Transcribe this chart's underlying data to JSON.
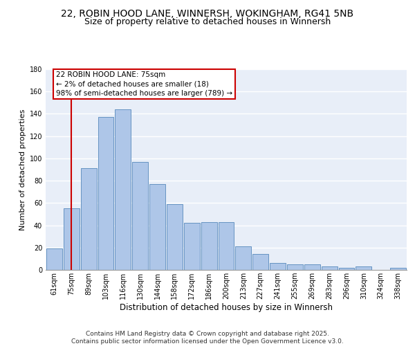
{
  "title1": "22, ROBIN HOOD LANE, WINNERSH, WOKINGHAM, RG41 5NB",
  "title2": "Size of property relative to detached houses in Winnersh",
  "xlabel": "Distribution of detached houses by size in Winnersh",
  "ylabel": "Number of detached properties",
  "bin_labels": [
    "61sqm",
    "75sqm",
    "89sqm",
    "103sqm",
    "116sqm",
    "130sqm",
    "144sqm",
    "158sqm",
    "172sqm",
    "186sqm",
    "200sqm",
    "213sqm",
    "227sqm",
    "241sqm",
    "255sqm",
    "269sqm",
    "283sqm",
    "296sqm",
    "310sqm",
    "324sqm",
    "338sqm"
  ],
  "bar_values": [
    19,
    55,
    91,
    137,
    144,
    97,
    77,
    59,
    42,
    43,
    43,
    21,
    14,
    6,
    5,
    5,
    3,
    2,
    3,
    0,
    2
  ],
  "bar_color": "#aec6e8",
  "bar_edgecolor": "#5588bb",
  "vline_x": 1,
  "vline_color": "#cc0000",
  "annotation_text": "22 ROBIN HOOD LANE: 75sqm\n← 2% of detached houses are smaller (18)\n98% of semi-detached houses are larger (789) →",
  "annotation_box_edgecolor": "#cc0000",
  "ylim": [
    0,
    180
  ],
  "yticks": [
    0,
    20,
    40,
    60,
    80,
    100,
    120,
    140,
    160,
    180
  ],
  "footer_text": "Contains HM Land Registry data © Crown copyright and database right 2025.\nContains public sector information licensed under the Open Government Licence v3.0.",
  "bg_color": "#e8eef8",
  "grid_color": "#ffffff",
  "title1_fontsize": 10,
  "title2_fontsize": 9,
  "xlabel_fontsize": 8.5,
  "ylabel_fontsize": 8,
  "tick_fontsize": 7,
  "annotation_fontsize": 7.5,
  "footer_fontsize": 6.5
}
